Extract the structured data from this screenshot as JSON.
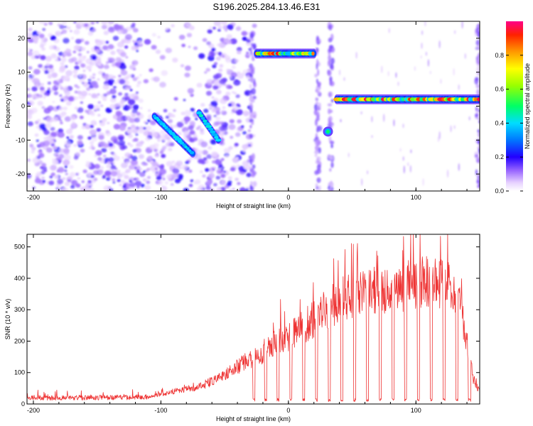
{
  "title": "S196.2025.284.13.46.E31",
  "chart_data": [
    {
      "type": "heatmap",
      "name": "spectrogram",
      "xlabel": "Height of straight line (km)",
      "ylabel": "Frequency (Hz)",
      "xlim": [
        -205,
        150
      ],
      "ylim": [
        -25,
        25
      ],
      "xticks": [
        -200,
        -100,
        0,
        100
      ],
      "yticks": [
        -20,
        -10,
        0,
        10,
        20
      ],
      "colorbar": {
        "label": "Normalized spectral amplitude",
        "range": [
          0,
          1
        ],
        "ticks": [
          0.0,
          0.2,
          0.4,
          0.6,
          0.8
        ]
      },
      "features": [
        {
          "label": "diffuse noise",
          "x_range": [
            -205,
            -30
          ],
          "freq_range": [
            -25,
            25
          ]
        },
        {
          "label": "diagonal band A",
          "x_range": [
            -105,
            -75
          ],
          "freq_start": -3,
          "freq_end": -14
        },
        {
          "label": "diagonal band B",
          "x_range": [
            -70,
            -55
          ],
          "freq_start": -2,
          "freq_end": -10
        },
        {
          "label": "signal line 1",
          "x_range": [
            -25,
            20
          ],
          "freq": 15.5
        },
        {
          "label": "blob",
          "x": 31,
          "freq": -7.5
        },
        {
          "label": "signal line 2",
          "x_range": [
            38,
            150
          ],
          "freq": 2
        }
      ]
    },
    {
      "type": "line",
      "name": "snr",
      "xlabel": "Height of straight line (km)",
      "ylabel": "SNR (10 * v/v)",
      "xlim": [
        -205,
        150
      ],
      "ylim": [
        0,
        540
      ],
      "xticks": [
        -200,
        -100,
        0,
        100
      ],
      "yticks": [
        0,
        100,
        200,
        300,
        400,
        500
      ],
      "color": "#ee3333",
      "envelope": {
        "x": [
          -205,
          -150,
          -110,
          -90,
          -70,
          -55,
          -45,
          -35,
          -20,
          -10,
          0,
          10,
          20,
          30,
          40,
          50,
          60,
          70,
          80,
          90,
          100,
          110,
          120,
          125,
          130,
          135,
          140,
          145,
          150
        ],
        "y": [
          20,
          20,
          22,
          40,
          55,
          80,
          110,
          130,
          160,
          200,
          210,
          240,
          270,
          300,
          330,
          340,
          350,
          360,
          365,
          375,
          390,
          395,
          390,
          380,
          340,
          300,
          200,
          80,
          40
        ]
      },
      "dips_x": [
        -27,
        -18,
        -8,
        2,
        12,
        22,
        32,
        42,
        52,
        62,
        72,
        82,
        92,
        102,
        112,
        122,
        132,
        142
      ]
    }
  ]
}
